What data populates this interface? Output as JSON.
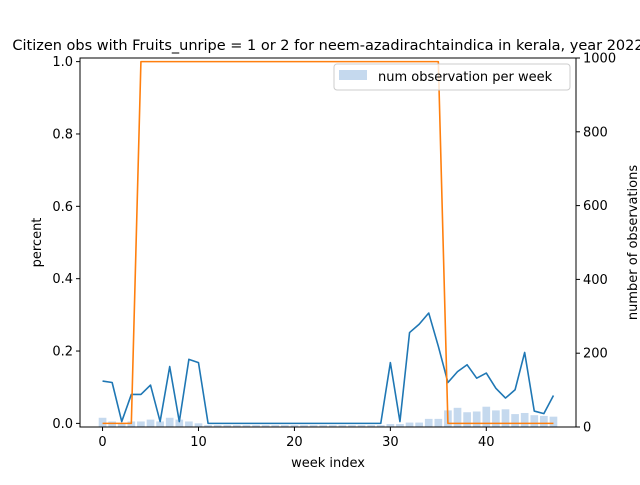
{
  "chart_data": {
    "type": "line",
    "title": "Citizen obs with Fruits_unripe = 1 or 2 for neem-azadirachtaindica in kerala, year 2022",
    "xlabel": "week index",
    "ylabel": "percent",
    "y2label": "number of observations",
    "xlim": [
      -2.35,
      49.35
    ],
    "ylim": [
      -0.01,
      1.01
    ],
    "y2lim": [
      0,
      1000
    ],
    "x_ticks": [
      0,
      10,
      20,
      30,
      40
    ],
    "y_ticks": [
      0.0,
      0.2,
      0.4,
      0.6,
      0.8,
      1.0
    ],
    "y2_ticks": [
      0,
      200,
      400,
      600,
      800,
      1000
    ],
    "legend": {
      "placement": "top-right",
      "entries": [
        "num observation per week"
      ]
    },
    "grid": false,
    "colors": {
      "percent_line": "#1f77b4",
      "indicator_line": "#ff7f0e",
      "bars": "#c5d9ee"
    },
    "x": [
      0,
      1,
      2,
      3,
      4,
      5,
      6,
      7,
      8,
      9,
      10,
      11,
      12,
      13,
      14,
      15,
      16,
      17,
      18,
      19,
      20,
      21,
      22,
      23,
      24,
      25,
      26,
      27,
      28,
      29,
      30,
      31,
      32,
      33,
      34,
      35,
      36,
      37,
      38,
      39,
      40,
      41,
      42,
      43,
      44,
      45,
      46,
      47
    ],
    "series": [
      {
        "type": "line",
        "axis": "left",
        "values": [
          0.117,
          0.113,
          0.005,
          0.08,
          0.08,
          0.106,
          0.005,
          0.157,
          0.005,
          0.177,
          0.168,
          0.0,
          0.0,
          0.0,
          0.0,
          0.0,
          0.0,
          0.0,
          0.0,
          0.0,
          0.0,
          0.0,
          0.0,
          0.0,
          0.0,
          0.0,
          0.0,
          0.0,
          0.0,
          0.0,
          0.168,
          0.005,
          0.251,
          0.274,
          0.305,
          0.213,
          0.113,
          0.143,
          0.162,
          0.125,
          0.139,
          0.097,
          0.07,
          0.093,
          0.196,
          0.034,
          0.027,
          0.077
        ]
      },
      {
        "type": "line",
        "axis": "left",
        "values": [
          0.0,
          0.0,
          0.0,
          0.0,
          1.0,
          1.0,
          1.0,
          1.0,
          1.0,
          1.0,
          1.0,
          1.0,
          1.0,
          1.0,
          1.0,
          1.0,
          1.0,
          1.0,
          1.0,
          1.0,
          1.0,
          1.0,
          1.0,
          1.0,
          1.0,
          1.0,
          1.0,
          1.0,
          1.0,
          1.0,
          1.0,
          1.0,
          1.0,
          1.0,
          1.0,
          1.0,
          0.0,
          0.0,
          0.0,
          0.0,
          0.0,
          0.0,
          0.0,
          0.0,
          0.0,
          0.0,
          0.0,
          0.0
        ]
      },
      {
        "name": "num observation per week",
        "type": "bar",
        "axis": "right",
        "values": [
          25,
          15,
          10,
          15,
          15,
          20,
          15,
          25,
          20,
          15,
          10,
          5,
          5,
          5,
          5,
          5,
          5,
          5,
          5,
          5,
          5,
          5,
          5,
          5,
          5,
          5,
          5,
          5,
          5,
          5,
          8,
          8,
          12,
          12,
          22,
          22,
          45,
          52,
          40,
          42,
          55,
          45,
          48,
          35,
          38,
          32,
          30,
          28
        ]
      }
    ]
  }
}
